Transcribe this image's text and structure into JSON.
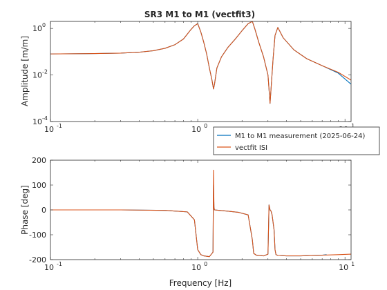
{
  "figure": {
    "title": "SR3 M1 to M1 (vectfit3)"
  },
  "colors": {
    "measurement": "#0072BD",
    "fit": "#D95319",
    "axis": "#262626",
    "background": "#ffffff"
  },
  "chart_data": [
    {
      "type": "line",
      "panel": "amplitude",
      "title": "SR3 M1 to M1 (vectfit3)",
      "xlabel": "Frequency [Hz]",
      "ylabel": "Amplitude [m/m]",
      "xscale": "log",
      "yscale": "log",
      "xlim": [
        0.1,
        11
      ],
      "ylim": [
        0.0001,
        2
      ],
      "x_ticks": [
        0.1,
        1,
        10
      ],
      "x_tick_labels": [
        "10",
        "10",
        "10"
      ],
      "x_tick_exponents": [
        "-1",
        "0",
        "1"
      ],
      "y_ticks": [
        0.0001,
        0.01,
        1
      ],
      "y_tick_labels": [
        "10",
        "10",
        "10"
      ],
      "y_tick_exponents": [
        "-4",
        "-2",
        "0"
      ],
      "grid": false,
      "legend_position": "lower-right",
      "series": [
        {
          "name": "M1 to M1 measurement (2025-06-24)",
          "color": "#0072BD",
          "x": [
            0.1,
            0.2,
            0.3,
            0.4,
            0.5,
            0.6,
            0.7,
            0.8,
            0.9,
            0.95,
            1.0,
            1.05,
            1.1,
            1.15,
            1.2,
            1.25,
            1.28,
            1.3,
            1.35,
            1.45,
            1.6,
            1.8,
            2.0,
            2.2,
            2.35,
            2.45,
            2.6,
            2.8,
            3.0,
            3.1,
            3.25,
            3.35,
            3.5,
            3.8,
            4.5,
            5.5,
            7.0,
            9.0,
            11.0
          ],
          "y": [
            0.08,
            0.083,
            0.087,
            0.095,
            0.11,
            0.14,
            0.2,
            0.35,
            0.9,
            1.3,
            1.6,
            0.7,
            0.25,
            0.08,
            0.02,
            0.006,
            0.0025,
            0.004,
            0.02,
            0.06,
            0.15,
            0.35,
            0.8,
            1.6,
            2.0,
            0.9,
            0.25,
            0.06,
            0.01,
            0.0006,
            0.05,
            0.5,
            1.1,
            0.4,
            0.12,
            0.05,
            0.025,
            0.012,
            0.004
          ]
        },
        {
          "name": "vectfit ISI",
          "color": "#D95319",
          "x": [
            0.1,
            0.2,
            0.3,
            0.4,
            0.5,
            0.6,
            0.7,
            0.8,
            0.9,
            0.95,
            1.0,
            1.05,
            1.1,
            1.15,
            1.2,
            1.25,
            1.28,
            1.3,
            1.35,
            1.45,
            1.6,
            1.8,
            2.0,
            2.2,
            2.35,
            2.45,
            2.6,
            2.8,
            3.0,
            3.1,
            3.25,
            3.35,
            3.5,
            3.8,
            4.5,
            5.5,
            7.0,
            9.0,
            11.0
          ],
          "y": [
            0.08,
            0.083,
            0.087,
            0.095,
            0.11,
            0.14,
            0.2,
            0.35,
            0.9,
            1.3,
            1.6,
            0.7,
            0.25,
            0.08,
            0.02,
            0.006,
            0.0025,
            0.004,
            0.02,
            0.06,
            0.15,
            0.35,
            0.8,
            1.6,
            2.0,
            0.9,
            0.25,
            0.06,
            0.01,
            0.0006,
            0.05,
            0.5,
            1.1,
            0.4,
            0.12,
            0.05,
            0.025,
            0.013,
            0.006
          ]
        }
      ]
    },
    {
      "type": "line",
      "panel": "phase",
      "xlabel": "Frequency [Hz]",
      "ylabel": "Phase [deg]",
      "xscale": "log",
      "xlim": [
        0.1,
        11
      ],
      "ylim": [
        -200,
        200
      ],
      "x_ticks": [
        0.1,
        1,
        10
      ],
      "x_tick_labels": [
        "10",
        "10",
        "10"
      ],
      "x_tick_exponents": [
        "-1",
        "0",
        "1"
      ],
      "y_ticks": [
        -200,
        -100,
        0,
        100,
        200
      ],
      "y_tick_labels": [
        "-200",
        "-100",
        "0",
        "100",
        "200"
      ],
      "grid": false,
      "series": [
        {
          "name": "M1 to M1 measurement (2025-06-24)",
          "color": "#0072BD",
          "x": [
            0.1,
            0.3,
            0.6,
            0.85,
            0.95,
            1.0,
            1.05,
            1.1,
            1.2,
            1.27,
            1.28,
            1.29,
            1.3,
            1.4,
            1.6,
            1.9,
            2.2,
            2.35,
            2.4,
            2.5,
            2.8,
            3.0,
            3.05,
            3.1,
            3.15,
            3.2,
            3.3,
            3.35,
            3.4,
            3.5,
            4.0,
            5.0,
            6.0,
            7.0,
            7.5
          ],
          "y": [
            0,
            0,
            -2,
            -8,
            -40,
            -160,
            -180,
            -185,
            -188,
            -170,
            100,
            10,
            0,
            -2,
            -5,
            -10,
            -20,
            -120,
            -175,
            -182,
            -185,
            -178,
            20,
            0,
            -5,
            -20,
            -80,
            -160,
            -180,
            -183,
            -185,
            -185,
            -183,
            -182,
            -180
          ]
        },
        {
          "name": "vectfit ISI",
          "color": "#D95319",
          "x": [
            0.1,
            0.3,
            0.6,
            0.85,
            0.95,
            1.0,
            1.05,
            1.1,
            1.2,
            1.27,
            1.28,
            1.29,
            1.3,
            1.4,
            1.6,
            1.9,
            2.2,
            2.35,
            2.4,
            2.5,
            2.8,
            3.0,
            3.05,
            3.1,
            3.15,
            3.2,
            3.3,
            3.35,
            3.4,
            3.5,
            4.0,
            5.0,
            7.0,
            9.0,
            11.0
          ],
          "y": [
            0,
            0,
            -2,
            -8,
            -40,
            -160,
            -180,
            -185,
            -188,
            -170,
            160,
            10,
            0,
            -2,
            -5,
            -10,
            -20,
            -120,
            -175,
            -182,
            -185,
            -178,
            20,
            0,
            -5,
            -20,
            -80,
            -160,
            -180,
            -183,
            -185,
            -185,
            -182,
            -180,
            -178
          ]
        }
      ]
    }
  ]
}
